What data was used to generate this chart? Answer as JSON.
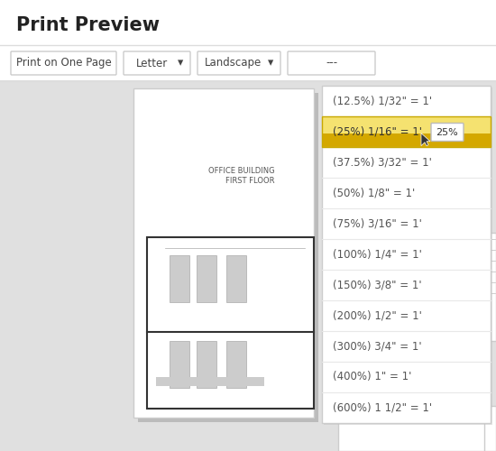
{
  "title": "Print Preview",
  "title_fontsize": 15,
  "bg_color": "#f2f2f2",
  "white": "#ffffff",
  "dropdown_items": [
    "(12.5%) 1/32\" = 1'",
    "(25%) 1/16\" = 1'",
    "(37.5%) 3/32\" = 1'",
    "(50%) 1/8\" = 1'",
    "(75%) 3/16\" = 1'",
    "(100%) 1/4\" = 1'",
    "(150%) 3/8\" = 1'",
    "(200%) 1/2\" = 1'",
    "(300%) 3/4\" = 1'",
    "(400%) 1\" = 1'",
    "(600%) 1 1/2\" = 1'"
  ],
  "highlighted_index": 1,
  "highlight_color_top": "#f5e270",
  "highlight_color_bottom": "#d4a800",
  "tooltip_text": "25%",
  "floor_plan_label": "OFFICE BUILDING\nFIRST FLOOR",
  "dropdown_bg": "#ffffff",
  "dropdown_border": "#cccccc",
  "text_color": "#555555",
  "button_border": "#cccccc",
  "separator_color": "#e8e8e8",
  "page_bg": "#ffffff",
  "page_border": "#cccccc",
  "outer_bg": "#e0e0e0",
  "wall_color": "#333333",
  "desk_color": "#cccccc",
  "desk_border": "#aaaaaa"
}
